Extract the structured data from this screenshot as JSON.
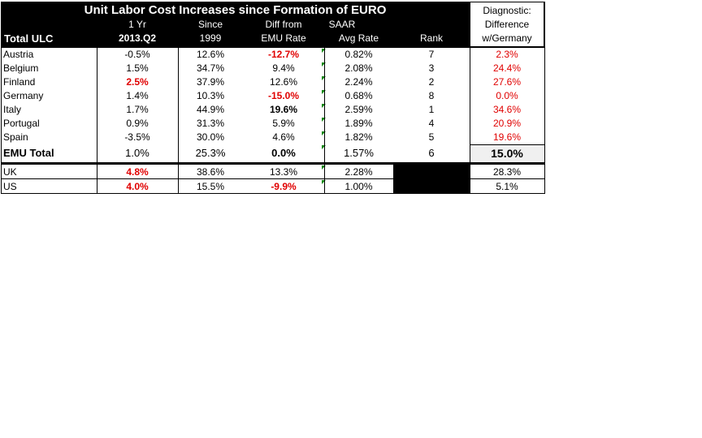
{
  "chart_data": {
    "type": "table",
    "title": "Unit Labor Cost Increases  since Formation of EURO",
    "row_label_header": "Total ULC",
    "columns": [
      {
        "l1": "1 Yr",
        "l2": "2013.Q2"
      },
      {
        "l1": "Since",
        "l2": "1999"
      },
      {
        "l1": "Diff from",
        "l2": "EMU Rate"
      },
      {
        "l1": "SAAR",
        "l2": "Avg Rate"
      },
      {
        "l1": "",
        "l2": "Rank"
      },
      {
        "l1": "Diagnostic:",
        "l2": "Difference",
        "l3": "w/Germany"
      }
    ],
    "rows": [
      {
        "name": "Austria",
        "yr1": "-0.5%",
        "since": "12.6%",
        "diff": "-12.7%",
        "saar": "0.82%",
        "rank": "7",
        "diag": "2.3%"
      },
      {
        "name": "Belgium",
        "yr1": "1.5%",
        "since": "34.7%",
        "diff": "9.4%",
        "saar": "2.08%",
        "rank": "3",
        "diag": "24.4%"
      },
      {
        "name": "Finland",
        "yr1": "2.5%",
        "since": "37.9%",
        "diff": "12.6%",
        "saar": "2.24%",
        "rank": "2",
        "diag": "27.6%"
      },
      {
        "name": "Germany",
        "yr1": "1.4%",
        "since": "10.3%",
        "diff": "-15.0%",
        "saar": "0.68%",
        "rank": "8",
        "diag": "0.0%"
      },
      {
        "name": "Italy",
        "yr1": "1.7%",
        "since": "44.9%",
        "diff": "19.6%",
        "saar": "2.59%",
        "rank": "1",
        "diag": "34.6%"
      },
      {
        "name": "Portugal",
        "yr1": "0.9%",
        "since": "31.3%",
        "diff": "5.9%",
        "saar": "1.89%",
        "rank": "4",
        "diag": "20.9%"
      },
      {
        "name": "Spain",
        "yr1": "-3.5%",
        "since": "30.0%",
        "diff": "4.6%",
        "saar": "1.82%",
        "rank": "5",
        "diag": "19.6%"
      },
      {
        "name": "EMU Total",
        "yr1": "1.0%",
        "since": "25.3%",
        "diff": "0.0%",
        "saar": "1.57%",
        "rank": "6",
        "diag": "15.0%"
      },
      {
        "name": "UK",
        "yr1": "4.8%",
        "since": "38.6%",
        "diff": "13.3%",
        "saar": "2.28%",
        "rank": "",
        "diag": "28.3%"
      },
      {
        "name": "US",
        "yr1": "4.0%",
        "since": "15.5%",
        "diff": "-9.9%",
        "saar": "1.00%",
        "rank": "",
        "diag": "5.1%"
      }
    ],
    "colors": {
      "highlight": "#e00000",
      "header_bg": "#000000",
      "comment_marker": "#1a8a1a"
    }
  }
}
